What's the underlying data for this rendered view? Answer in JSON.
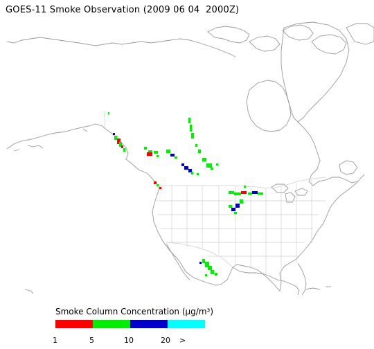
{
  "title": "GOES-11 Smoke Observation (2009 06 04  2000Z)",
  "legend": {
    "title": "Smoke Column Concentration (μg/m³)",
    "colors": [
      "#ff0000",
      "#00ee00",
      "#0000cc",
      "#00ffff"
    ],
    "ticks": [
      "1",
      "5",
      "10",
      "20",
      ">"
    ]
  },
  "map": {
    "coastline_color": "#999999",
    "border_color": "#c8c8c8"
  }
}
